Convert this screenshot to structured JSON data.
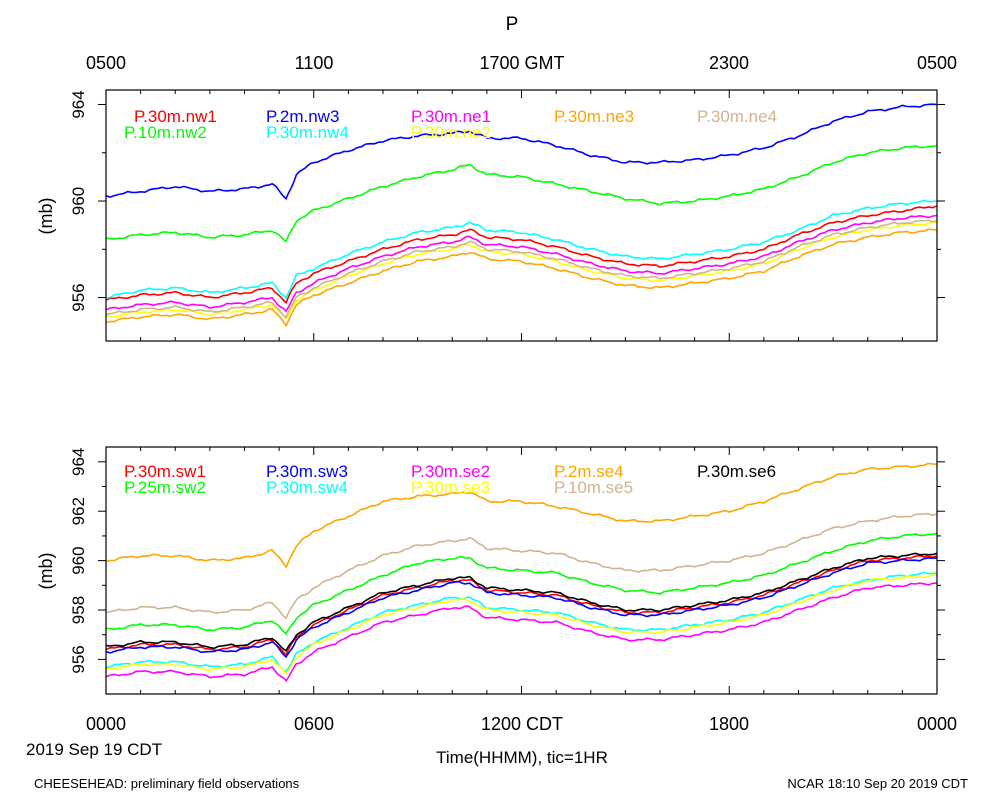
{
  "title": "P",
  "ylabel": "(mb)",
  "xlabel": "Time(HHMM), tic=1HR",
  "date_label": "2019 Sep 19 CDT",
  "footer_left": "CHEESEHEAD: preliminary field observations",
  "footer_right": "NCAR 18:10 Sep 20 2019 CDT",
  "x_ticks_gmt": [
    "0500",
    "1100",
    "1700 GMT",
    "2300",
    "0500"
  ],
  "x_ticks_cdt": [
    "0000",
    "0600",
    "1200 CDT",
    "1800",
    "0000"
  ],
  "colors": {
    "red": "#ff0000",
    "green": "#00ff00",
    "blue": "#0000ff",
    "cyan": "#00ffff",
    "magenta": "#ff00ff",
    "yellow": "#ffff00",
    "orange": "#ffa500",
    "tan": "#d2b48c",
    "black": "#000000"
  },
  "chart_data": [
    {
      "type": "line",
      "xlim": [
        0,
        24
      ],
      "ylim": [
        954.2,
        964.6
      ],
      "y_ticks": [
        956,
        960,
        964
      ],
      "x_hours": [
        0,
        1,
        2,
        3,
        4,
        4.8,
        5.2,
        5.5,
        6,
        7,
        8,
        9,
        10,
        10.5,
        11,
        12,
        13,
        14,
        15,
        16,
        17,
        18,
        19,
        20,
        21,
        22,
        23,
        24
      ],
      "series": [
        {
          "name": "P.30m.nw1",
          "color": "red",
          "values": [
            955.9,
            956.1,
            956.2,
            956.0,
            956.2,
            956.4,
            955.8,
            956.6,
            957.0,
            957.5,
            958.0,
            958.4,
            958.6,
            958.8,
            958.5,
            958.4,
            958.1,
            957.7,
            957.4,
            957.3,
            957.5,
            957.7,
            958.0,
            958.6,
            959.1,
            959.4,
            959.6,
            959.8
          ]
        },
        {
          "name": "P.10m.nw2",
          "color": "green",
          "values": [
            958.4,
            958.6,
            958.7,
            958.5,
            958.6,
            958.8,
            958.3,
            959.2,
            959.6,
            960.1,
            960.6,
            961.0,
            961.3,
            961.5,
            961.1,
            961.0,
            960.7,
            960.4,
            960.1,
            959.9,
            960.0,
            960.2,
            960.5,
            961.0,
            961.6,
            962.0,
            962.2,
            962.3
          ]
        },
        {
          "name": "P.2m.nw3",
          "color": "blue",
          "values": [
            960.2,
            960.4,
            960.6,
            960.4,
            960.5,
            960.7,
            960.1,
            961.1,
            961.6,
            962.1,
            962.5,
            962.7,
            962.8,
            962.9,
            962.6,
            962.6,
            962.3,
            961.9,
            961.6,
            961.6,
            961.7,
            961.9,
            962.2,
            962.7,
            963.3,
            963.7,
            963.9,
            964.0
          ]
        },
        {
          "name": "P.30m.nw4",
          "color": "cyan",
          "values": [
            956.0,
            956.3,
            956.4,
            956.2,
            956.4,
            956.6,
            956.0,
            956.9,
            957.2,
            957.8,
            958.3,
            958.7,
            958.9,
            959.1,
            958.8,
            958.7,
            958.4,
            958.0,
            957.7,
            957.6,
            957.8,
            958.0,
            958.3,
            958.8,
            959.4,
            959.7,
            959.9,
            960.0
          ]
        },
        {
          "name": "P.30m.ne1",
          "color": "magenta",
          "values": [
            955.5,
            955.7,
            955.8,
            955.6,
            955.8,
            956.0,
            955.4,
            956.2,
            956.6,
            957.2,
            957.7,
            958.1,
            958.3,
            958.5,
            958.2,
            958.1,
            957.8,
            957.4,
            957.1,
            957.0,
            957.2,
            957.4,
            957.7,
            958.3,
            958.8,
            959.1,
            959.3,
            959.4
          ]
        },
        {
          "name": "P.30m.ne2",
          "color": "yellow",
          "values": [
            955.2,
            955.4,
            955.5,
            955.3,
            955.5,
            955.7,
            955.1,
            955.9,
            956.3,
            956.9,
            957.4,
            957.8,
            958.0,
            958.2,
            957.9,
            957.8,
            957.5,
            957.1,
            956.8,
            956.7,
            956.9,
            957.1,
            957.4,
            958.0,
            958.5,
            958.8,
            959.0,
            959.1
          ]
        },
        {
          "name": "P.30m.ne3",
          "color": "orange",
          "values": [
            955.0,
            955.2,
            955.3,
            955.1,
            955.3,
            955.5,
            954.9,
            955.7,
            956.1,
            956.6,
            957.1,
            957.5,
            957.7,
            957.9,
            957.6,
            957.5,
            957.2,
            956.8,
            956.5,
            956.4,
            956.6,
            956.8,
            957.1,
            957.7,
            958.2,
            958.5,
            958.7,
            958.8
          ]
        },
        {
          "name": "P.30m.ne4",
          "color": "tan",
          "values": [
            955.3,
            955.5,
            955.6,
            955.4,
            955.6,
            955.8,
            955.2,
            956.0,
            956.4,
            957.0,
            957.5,
            957.9,
            958.1,
            958.3,
            958.0,
            957.9,
            957.6,
            957.2,
            956.9,
            956.8,
            957.0,
            957.2,
            957.5,
            958.1,
            958.6,
            958.9,
            959.1,
            959.2
          ]
        }
      ]
    },
    {
      "type": "line",
      "xlim": [
        0,
        24
      ],
      "ylim": [
        954.6,
        964.6
      ],
      "y_ticks": [
        956,
        958,
        960,
        962,
        964
      ],
      "x_hours": [
        0,
        1,
        2,
        3,
        4,
        4.8,
        5.2,
        5.5,
        6,
        7,
        8,
        9,
        10,
        10.5,
        11,
        12,
        13,
        14,
        15,
        16,
        17,
        18,
        19,
        20,
        21,
        22,
        23,
        24
      ],
      "series": [
        {
          "name": "P.30m.sw1",
          "color": "red",
          "values": [
            956.4,
            956.6,
            956.6,
            956.4,
            956.5,
            956.8,
            956.2,
            956.9,
            957.4,
            958.0,
            958.6,
            958.9,
            959.2,
            959.2,
            958.8,
            958.7,
            958.6,
            958.2,
            957.9,
            957.9,
            958.1,
            958.3,
            958.6,
            959.1,
            959.6,
            960.0,
            960.1,
            960.2
          ]
        },
        {
          "name": "P.25m.sw2",
          "color": "green",
          "values": [
            957.2,
            957.4,
            957.4,
            957.2,
            957.3,
            957.6,
            957.0,
            957.7,
            958.2,
            958.8,
            959.4,
            959.9,
            960.1,
            960.1,
            959.7,
            959.6,
            959.5,
            959.1,
            958.8,
            958.7,
            958.9,
            959.1,
            959.4,
            959.9,
            960.4,
            960.8,
            961.0,
            961.1
          ]
        },
        {
          "name": "P.30m.sw3",
          "color": "blue",
          "values": [
            956.3,
            956.5,
            956.5,
            956.3,
            956.4,
            956.7,
            956.1,
            956.8,
            957.3,
            957.9,
            958.5,
            958.8,
            959.1,
            959.1,
            958.7,
            958.6,
            958.5,
            958.1,
            957.8,
            957.8,
            958.0,
            958.2,
            958.5,
            959.0,
            959.5,
            959.9,
            960.0,
            960.1
          ]
        },
        {
          "name": "P.30m.sw4",
          "color": "cyan",
          "values": [
            955.7,
            955.9,
            955.9,
            955.7,
            955.8,
            956.1,
            955.5,
            956.2,
            956.7,
            957.3,
            957.9,
            958.2,
            958.5,
            958.5,
            958.1,
            958.0,
            957.9,
            957.5,
            957.2,
            957.2,
            957.4,
            957.6,
            957.9,
            958.4,
            958.9,
            959.2,
            959.4,
            959.5
          ]
        },
        {
          "name": "P.30m.se2",
          "color": "magenta",
          "values": [
            955.3,
            955.5,
            955.5,
            955.3,
            955.4,
            955.7,
            955.1,
            955.8,
            956.3,
            956.9,
            957.5,
            957.8,
            958.1,
            958.1,
            957.7,
            957.6,
            957.5,
            957.1,
            956.8,
            956.8,
            957.0,
            957.2,
            957.5,
            958.0,
            958.5,
            958.9,
            959.0,
            959.1
          ]
        },
        {
          "name": "P.30m.se3",
          "color": "yellow",
          "values": [
            955.6,
            955.8,
            955.8,
            955.6,
            955.7,
            956.0,
            955.4,
            956.1,
            956.6,
            957.2,
            957.8,
            958.1,
            958.4,
            958.4,
            958.0,
            957.9,
            957.8,
            957.4,
            957.1,
            957.1,
            957.3,
            957.5,
            957.8,
            958.3,
            958.8,
            959.2,
            959.3,
            959.4
          ]
        },
        {
          "name": "P.2m.se4",
          "color": "orange",
          "values": [
            960.0,
            960.2,
            960.2,
            960.0,
            960.1,
            960.4,
            959.8,
            960.6,
            961.2,
            961.8,
            962.4,
            962.6,
            962.7,
            962.8,
            962.4,
            962.4,
            962.2,
            961.9,
            961.6,
            961.6,
            961.8,
            962.0,
            962.4,
            962.9,
            963.4,
            963.7,
            963.8,
            963.9
          ]
        },
        {
          "name": "P.10m.se5",
          "color": "tan",
          "values": [
            957.9,
            958.1,
            958.1,
            957.9,
            958.0,
            958.3,
            957.7,
            958.4,
            958.9,
            959.6,
            960.2,
            960.6,
            960.8,
            960.9,
            960.5,
            960.4,
            960.3,
            959.9,
            959.6,
            959.6,
            959.8,
            960.0,
            960.3,
            960.8,
            961.3,
            961.6,
            961.8,
            961.9
          ]
        },
        {
          "name": "P.30m.se6",
          "color": "black",
          "values": [
            956.5,
            956.7,
            956.7,
            956.5,
            956.6,
            956.9,
            956.3,
            957.0,
            957.5,
            958.1,
            958.7,
            959.0,
            959.3,
            959.3,
            958.9,
            958.8,
            958.7,
            958.3,
            958.0,
            958.0,
            958.2,
            958.4,
            958.7,
            959.2,
            959.7,
            960.1,
            960.2,
            960.3
          ]
        }
      ]
    }
  ]
}
